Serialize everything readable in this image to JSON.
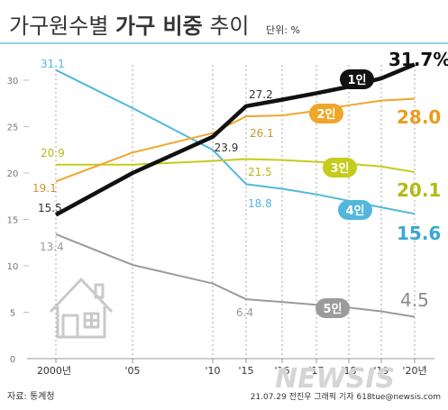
{
  "header": {
    "title_part1": "가구원수별 ",
    "title_part2": "가구 비중",
    "title_part3": " 추이",
    "unit": "단위: %"
  },
  "footer": {
    "source": "자료: 통계청",
    "credit": "21.07.29 전진우 그래픽 기자 618tue@newsis.com"
  },
  "watermark": "NEWSIS",
  "colors": {
    "1인": "#111111",
    "2인": "#f0a62a",
    "3인": "#c5cc1b",
    "4인": "#52b7dc",
    "5인": "#9b9b9b"
  },
  "chart_data": {
    "type": "line",
    "x": [
      2000,
      2005,
      2010,
      2015,
      2016,
      2017,
      2018,
      2019,
      2020
    ],
    "x_tick_labels": [
      "2000년",
      "'05",
      "'10",
      "'15",
      "'16",
      "'17",
      "'18",
      "'19",
      "'20년"
    ],
    "ylim": [
      0,
      32
    ],
    "y_ticks": [
      0,
      5,
      10,
      15,
      20,
      25,
      30
    ],
    "series": [
      {
        "name": "1인",
        "values": [
          15.5,
          20.0,
          23.9,
          27.2,
          27.9,
          28.6,
          29.3,
          30.2,
          31.7
        ]
      },
      {
        "name": "2인",
        "values": [
          19.1,
          22.2,
          24.3,
          26.1,
          26.2,
          26.7,
          27.3,
          27.8,
          28.0
        ]
      },
      {
        "name": "3인",
        "values": [
          20.9,
          20.9,
          21.3,
          21.5,
          21.4,
          21.2,
          21.0,
          20.7,
          20.1
        ]
      },
      {
        "name": "4인",
        "values": [
          31.1,
          27.0,
          22.5,
          18.8,
          18.3,
          17.7,
          17.0,
          16.3,
          15.6
        ]
      },
      {
        "name": "5인",
        "values": [
          13.4,
          10.1,
          8.1,
          6.4,
          6.1,
          5.8,
          5.5,
          5.1,
          4.5
        ]
      }
    ],
    "labels": [
      {
        "series": "1인",
        "text": "15.5"
      },
      {
        "series": "1인",
        "text": "23.9"
      },
      {
        "series": "1인",
        "text": "27.2"
      },
      {
        "series": "1인",
        "text": "31.7%"
      },
      {
        "series": "2인",
        "text": "19.1"
      },
      {
        "series": "2인",
        "text": "26.1"
      },
      {
        "series": "2인",
        "text": "28.0"
      },
      {
        "series": "3인",
        "text": "20.9"
      },
      {
        "series": "3인",
        "text": "21.5"
      },
      {
        "series": "3인",
        "text": "20.1"
      },
      {
        "series": "4인",
        "text": "31.1"
      },
      {
        "series": "4인",
        "text": "18.8"
      },
      {
        "series": "4인",
        "text": "15.6"
      },
      {
        "series": "5인",
        "text": "13.4"
      },
      {
        "series": "5인",
        "text": "6.4"
      },
      {
        "series": "5인",
        "text": "4.5"
      }
    ],
    "series_tags": [
      {
        "series": "1인",
        "text": "1인"
      },
      {
        "series": "2인",
        "text": "2인"
      },
      {
        "series": "3인",
        "text": "3인"
      },
      {
        "series": "4인",
        "text": "4인"
      },
      {
        "series": "5인",
        "text": "5인"
      }
    ],
    "grid": false
  }
}
